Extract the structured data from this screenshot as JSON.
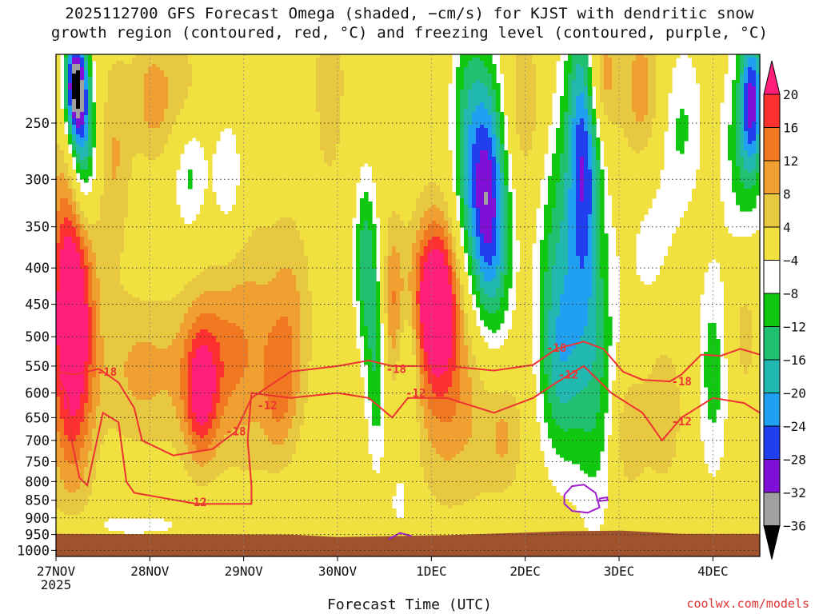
{
  "chart_data": {
    "type": "heatmap",
    "title_lines": [
      "2025112700 GFS Forecast Omega (shaded, −cm/s) for KJST with dendritic snow",
      "growth region (contoured, red, °C) and freezing level (contoured, purple, °C)"
    ],
    "xlabel": "Forecast Time (UTC)",
    "credit": "coolwx.com/models",
    "x_ticks": [
      {
        "label": "27NOV",
        "sub": "2025",
        "t": 0
      },
      {
        "label": "28NOV",
        "sub": "",
        "t": 24
      },
      {
        "label": "29NOV",
        "sub": "",
        "t": 48
      },
      {
        "label": "30NOV",
        "sub": "",
        "t": 72
      },
      {
        "label": "1DEC",
        "sub": "",
        "t": 96
      },
      {
        "label": "2DEC",
        "sub": "",
        "t": 120
      },
      {
        "label": "3DEC",
        "sub": "",
        "t": 144
      },
      {
        "label": "4DEC",
        "sub": "",
        "t": 168
      }
    ],
    "xlim": [
      0,
      180
    ],
    "y_ticks": [
      250,
      300,
      350,
      400,
      450,
      500,
      550,
      600,
      650,
      700,
      750,
      800,
      850,
      900,
      950,
      1000
    ],
    "ylim": [
      200,
      1020
    ],
    "y_scale": "log",
    "grid": true,
    "colorbar": {
      "levels": [
        20,
        16,
        12,
        8,
        4,
        -4,
        -8,
        -12,
        -16,
        -20,
        -24,
        -28,
        -32,
        -36
      ],
      "colors": [
        "#ff1f7a",
        "#ff3030",
        "#f07820",
        "#f0a030",
        "#e8c840",
        "#f0e040",
        "#ffffff",
        "#10c810",
        "#20c070",
        "#20b8b0",
        "#20a0f0",
        "#2040f0",
        "#8010d8",
        "#a0a0a0",
        "#000000"
      ]
    },
    "contour_labels": [
      {
        "text": "-18",
        "t": 13,
        "p": 560,
        "color": "#ee3333"
      },
      {
        "text": "-12",
        "t": 36,
        "p": 855,
        "color": "#ee3333"
      },
      {
        "text": "-18",
        "t": 46,
        "p": 680,
        "color": "#ee3333"
      },
      {
        "text": "-12",
        "t": 54,
        "p": 625,
        "color": "#ee3333"
      },
      {
        "text": "-18",
        "t": 87,
        "p": 555,
        "color": "#ee3333"
      },
      {
        "text": "-12",
        "t": 92,
        "p": 600,
        "color": "#ee3333"
      },
      {
        "text": "-18",
        "t": 128,
        "p": 518,
        "color": "#ee3333"
      },
      {
        "text": "-12",
        "t": 131,
        "p": 565,
        "color": "#ee3333"
      },
      {
        "text": "-18",
        "t": 160,
        "p": 578,
        "color": "#ee3333"
      },
      {
        "text": "-12",
        "t": 160,
        "p": 658,
        "color": "#ee3333"
      }
    ],
    "terrain_color": "#a0522d"
  }
}
